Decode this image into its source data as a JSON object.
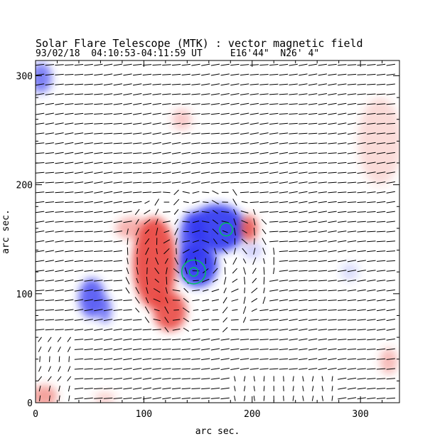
{
  "header": {
    "title": "Solar Flare Telescope (MTK) : vector magnetic field",
    "subtitle": "93/02/18  04:10:53-04:11:59 UT     E16'44\"  N26' 4\""
  },
  "colors": {
    "positive": "#e8403a",
    "negative": "#2f35f0",
    "contour": "#00c060",
    "vector": "#000000"
  },
  "chart_data": {
    "type": "heatmap",
    "title": "Solar Flare Telescope (MTK) : vector magnetic field",
    "xlabel": "arc sec.",
    "ylabel": "arc sec.",
    "xlim": [
      0,
      336
    ],
    "ylim": [
      0,
      314
    ],
    "xticks": [
      0,
      100,
      200,
      300
    ],
    "yticks": [
      0,
      100,
      200,
      300
    ],
    "xtick_labels": [
      "0",
      "100",
      "200",
      "300"
    ],
    "ytick_labels": [
      "0",
      "100",
      "200",
      "300"
    ],
    "vector_grid_spacing": 9,
    "polarity_regions": [
      {
        "polarity": "negative",
        "x": 168,
        "y": 160,
        "rx": 26,
        "ry": 22,
        "strength": 1.0
      },
      {
        "polarity": "negative",
        "x": 150,
        "y": 126,
        "rx": 18,
        "ry": 20,
        "strength": 1.0
      },
      {
        "polarity": "negative",
        "x": 145,
        "y": 150,
        "rx": 12,
        "ry": 25,
        "strength": 0.9
      },
      {
        "polarity": "negative",
        "x": 52,
        "y": 96,
        "rx": 12,
        "ry": 18,
        "strength": 0.85
      },
      {
        "polarity": "negative",
        "x": 64,
        "y": 85,
        "rx": 6,
        "ry": 12,
        "strength": 0.7
      },
      {
        "polarity": "negative",
        "x": 5,
        "y": 298,
        "rx": 10,
        "ry": 14,
        "strength": 0.7
      },
      {
        "polarity": "negative",
        "x": 200,
        "y": 140,
        "rx": 10,
        "ry": 8,
        "strength": 0.25
      },
      {
        "polarity": "negative",
        "x": 290,
        "y": 120,
        "rx": 8,
        "ry": 8,
        "strength": 0.2
      },
      {
        "polarity": "positive",
        "x": 110,
        "y": 128,
        "rx": 20,
        "ry": 42,
        "strength": 1.0
      },
      {
        "polarity": "positive",
        "x": 124,
        "y": 84,
        "rx": 15,
        "ry": 18,
        "strength": 0.95
      },
      {
        "polarity": "positive",
        "x": 197,
        "y": 160,
        "rx": 8,
        "ry": 12,
        "strength": 0.9
      },
      {
        "polarity": "positive",
        "x": 90,
        "y": 160,
        "rx": 16,
        "ry": 10,
        "strength": 0.45
      },
      {
        "polarity": "positive",
        "x": 135,
        "y": 260,
        "rx": 9,
        "ry": 10,
        "strength": 0.3
      },
      {
        "polarity": "positive",
        "x": 318,
        "y": 240,
        "rx": 20,
        "ry": 40,
        "strength": 0.22
      },
      {
        "polarity": "positive",
        "x": 8,
        "y": 6,
        "rx": 12,
        "ry": 10,
        "strength": 0.55
      },
      {
        "polarity": "positive",
        "x": 326,
        "y": 38,
        "rx": 8,
        "ry": 12,
        "strength": 0.4
      },
      {
        "polarity": "positive",
        "x": 64,
        "y": 4,
        "rx": 10,
        "ry": 6,
        "strength": 0.25
      }
    ],
    "contours": [
      {
        "x": 146,
        "y": 120,
        "r": 11
      },
      {
        "x": 146,
        "y": 120,
        "r": 4
      },
      {
        "x": 176,
        "y": 159,
        "r": 6
      }
    ]
  }
}
